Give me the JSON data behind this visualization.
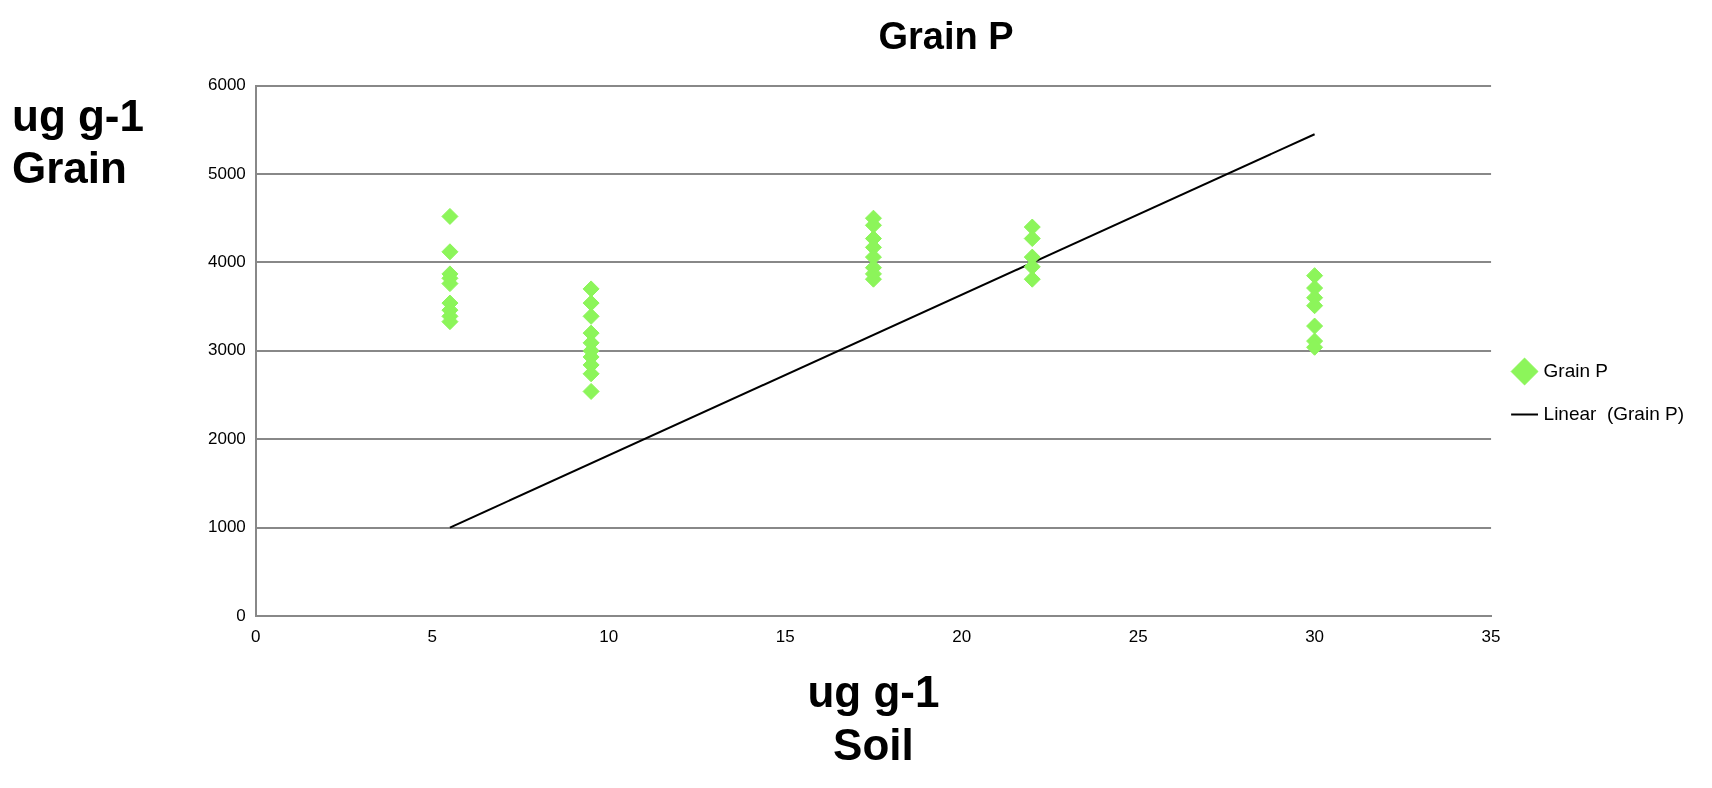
{
  "chart_data": {
    "type": "scatter",
    "title": "Grain P",
    "xlabel": "ug g-1\nSoil",
    "ylabel": "ug g-1\nGrain",
    "xlim": [
      0,
      35
    ],
    "xticks": [
      0,
      5,
      10,
      15,
      20,
      25,
      30,
      35
    ],
    "ylim": [
      0,
      6000
    ],
    "yticks": [
      0,
      1000,
      2000,
      3000,
      4000,
      5000,
      6000
    ],
    "grid": "y",
    "legend": "right",
    "series": [
      {
        "name": "Grain P",
        "marker": "diamond",
        "color": "#8cf55a",
        "x": [
          5.5,
          5.5,
          5.5,
          5.5,
          5.5,
          5.5,
          5.5,
          5.5,
          5.5,
          9.5,
          9.5,
          9.5,
          9.5,
          9.5,
          9.5,
          9.5,
          9.5,
          9.5,
          9.5,
          17.5,
          17.5,
          17.5,
          17.5,
          17.5,
          17.5,
          17.5,
          17.5,
          22,
          22,
          22,
          22,
          22,
          30,
          30,
          30,
          30,
          30,
          30,
          30
        ],
        "values": [
          4520,
          4120,
          3870,
          3820,
          3760,
          3540,
          3460,
          3390,
          3330,
          3700,
          3540,
          3390,
          3200,
          3090,
          3000,
          2930,
          2840,
          2740,
          2540,
          4500,
          4420,
          4270,
          4170,
          4060,
          3940,
          3870,
          3810,
          4400,
          4270,
          4060,
          3950,
          3810,
          3850,
          3710,
          3600,
          3510,
          3280,
          3110,
          3040
        ]
      },
      {
        "name": "Linear  (Grain P)",
        "type": "line",
        "marker": "none",
        "color": "#000000",
        "x": [
          5.5,
          30
        ],
        "values": [
          1000,
          5450
        ]
      }
    ]
  }
}
